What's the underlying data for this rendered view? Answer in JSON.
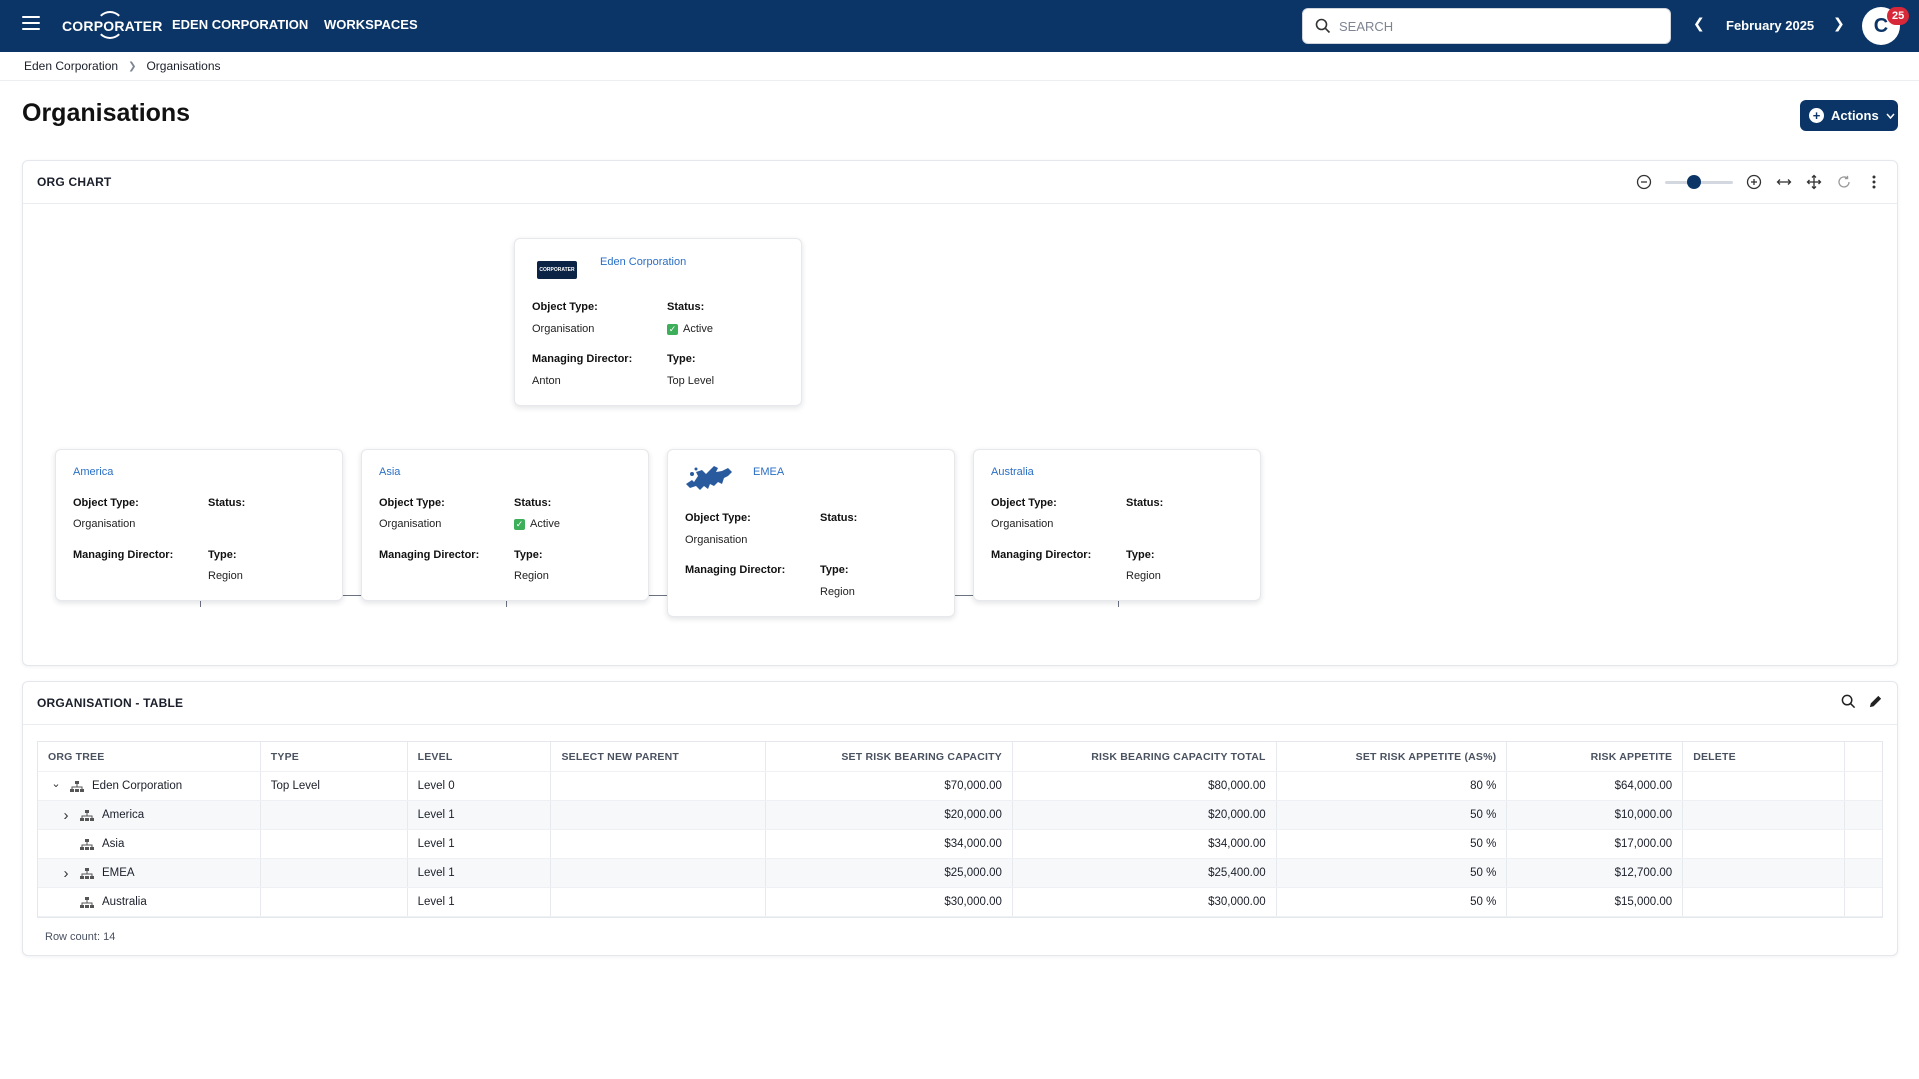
{
  "topbar": {
    "logo": "CORPORATER",
    "nav": [
      "EDEN CORPORATION",
      "WORKSPACES"
    ],
    "search_placeholder": "SEARCH",
    "period": "February 2025",
    "avatar_letter": "C",
    "notification_count": "25",
    "colors": {
      "bar": "#0b3566",
      "badge": "#d62839"
    }
  },
  "breadcrumb": [
    "Eden Corporation",
    "Organisations"
  ],
  "page_title": "Organisations",
  "actions_label": "Actions",
  "org_chart": {
    "title": "ORG CHART",
    "zoom_level": 0.4,
    "root": {
      "name": "Eden Corporation",
      "object_type_label": "Object Type:",
      "object_type": "Organisation",
      "status_label": "Status:",
      "status": "Active",
      "director_label": "Managing Director:",
      "director": "Anton",
      "type_label": "Type:",
      "type": "Top Level"
    },
    "children": [
      {
        "name": "America",
        "object_type": "Organisation",
        "status": "",
        "director": "",
        "type": "Region"
      },
      {
        "name": "Asia",
        "object_type": "Organisation",
        "status": "Active",
        "director": "",
        "type": "Region"
      },
      {
        "name": "EMEA",
        "object_type": "Organisation",
        "status": "",
        "director": "",
        "type": "Region"
      },
      {
        "name": "Australia",
        "object_type": "Organisation",
        "status": "",
        "director": "",
        "type": "Region"
      }
    ],
    "labels": {
      "object_type": "Object Type:",
      "status": "Status:",
      "director": "Managing Director:",
      "type": "Type:"
    }
  },
  "org_table": {
    "title": "ORGANISATION - TABLE",
    "columns": [
      "ORG TREE",
      "TYPE",
      "LEVEL",
      "SELECT NEW PARENT",
      "SET RISK BEARING CAPACITY",
      "RISK BEARING CAPACITY TOTAL",
      "SET RISK APPETITE (AS%)",
      "RISK APPETITE",
      "DELETE",
      ""
    ],
    "rows": [
      {
        "tree": "Eden Corporation",
        "type": "Top Level",
        "level": "Level 0",
        "parent": "",
        "set_rbc": "$70,000.00",
        "rbc_total": "$80,000.00",
        "appetite_pct": "80 %",
        "appetite": "$64,000.00"
      },
      {
        "tree": "America",
        "type": "",
        "level": "Level 1",
        "parent": "",
        "set_rbc": "$20,000.00",
        "rbc_total": "$20,000.00",
        "appetite_pct": "50 %",
        "appetite": "$10,000.00"
      },
      {
        "tree": "Asia",
        "type": "",
        "level": "Level 1",
        "parent": "",
        "set_rbc": "$34,000.00",
        "rbc_total": "$34,000.00",
        "appetite_pct": "50 %",
        "appetite": "$17,000.00"
      },
      {
        "tree": "EMEA",
        "type": "",
        "level": "Level 1",
        "parent": "",
        "set_rbc": "$25,000.00",
        "rbc_total": "$25,400.00",
        "appetite_pct": "50 %",
        "appetite": "$12,700.00"
      },
      {
        "tree": "Australia",
        "type": "",
        "level": "Level 1",
        "parent": "",
        "set_rbc": "$30,000.00",
        "rbc_total": "$30,000.00",
        "appetite_pct": "50 %",
        "appetite": "$15,000.00"
      }
    ],
    "row_count": "Row count: 14"
  }
}
